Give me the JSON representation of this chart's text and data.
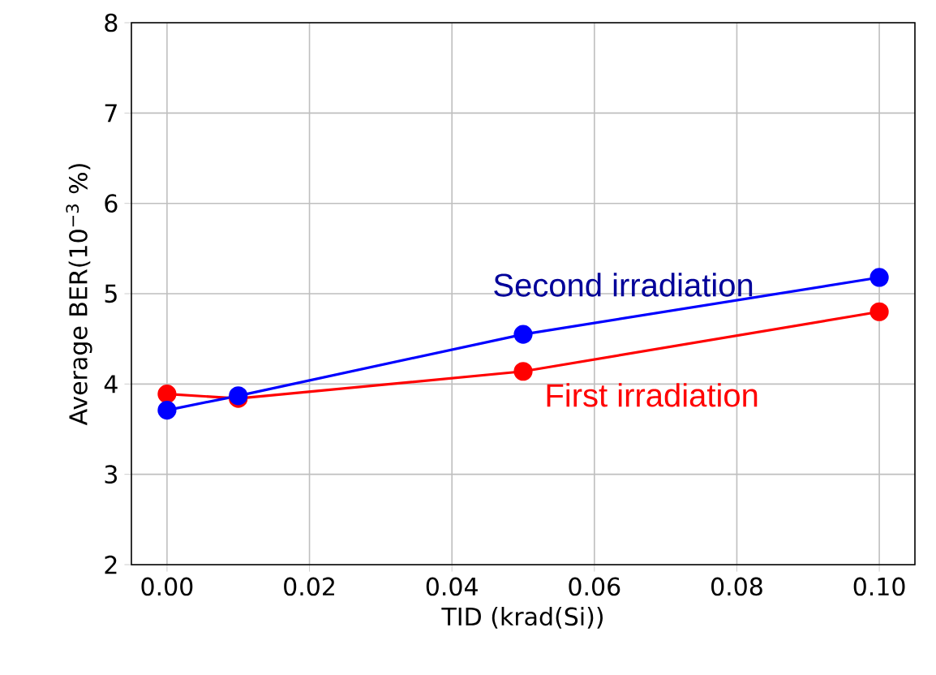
{
  "chart_data": {
    "type": "line",
    "xlabel": "TID (krad(Si))",
    "ylabel": "Average BER(10$^{−3}$ %)",
    "x": [
      0,
      0.01,
      0.05,
      0.1
    ],
    "series": [
      {
        "name": "Second irradiation",
        "color": "#0000ff",
        "values": [
          3.71,
          3.87,
          4.55,
          5.18
        ]
      },
      {
        "name": "First irradiation",
        "color": "#ff0000",
        "values": [
          3.89,
          3.84,
          4.14,
          4.8
        ]
      }
    ],
    "xlim": [
      -0.005,
      0.105
    ],
    "ylim": [
      2,
      8
    ],
    "xticks": [
      {
        "value": 0,
        "label": "0.00"
      },
      {
        "value": 0.02,
        "label": "0.02"
      },
      {
        "value": 0.04,
        "label": "0.04"
      },
      {
        "value": 0.06,
        "label": "0.06"
      },
      {
        "value": 0.08,
        "label": "0.08"
      },
      {
        "value": 0.1,
        "label": "0.10"
      }
    ],
    "yticks": [
      2,
      3,
      4,
      5,
      6,
      7,
      8
    ],
    "grid": true,
    "marker": "circle",
    "legend": false
  }
}
